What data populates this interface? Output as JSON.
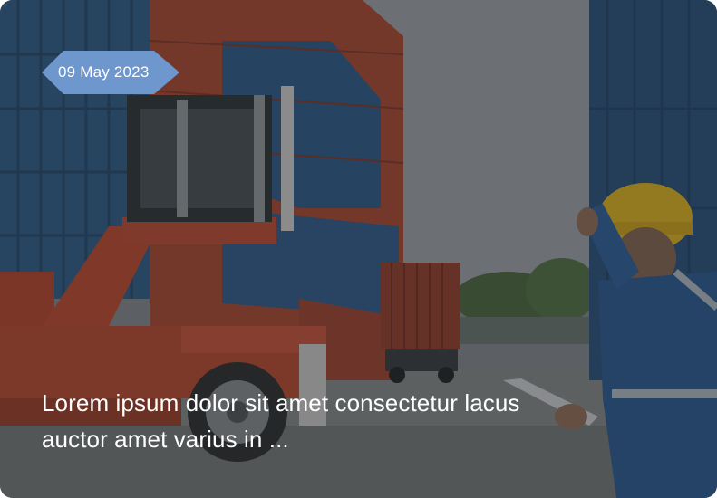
{
  "card": {
    "date": "09 May 2023",
    "headline": "Lorem ipsum dolor sit amet consectetur lacus auctor amet varius in ...",
    "image_subject": "port-worker-with-containers-photo"
  },
  "colors": {
    "date_tag_bg": "#6d97cd",
    "text": "#ffffff",
    "container_blue": "#2e5a86",
    "container_red": "#a8452e",
    "hardhat_yellow": "#e9bb1f"
  }
}
